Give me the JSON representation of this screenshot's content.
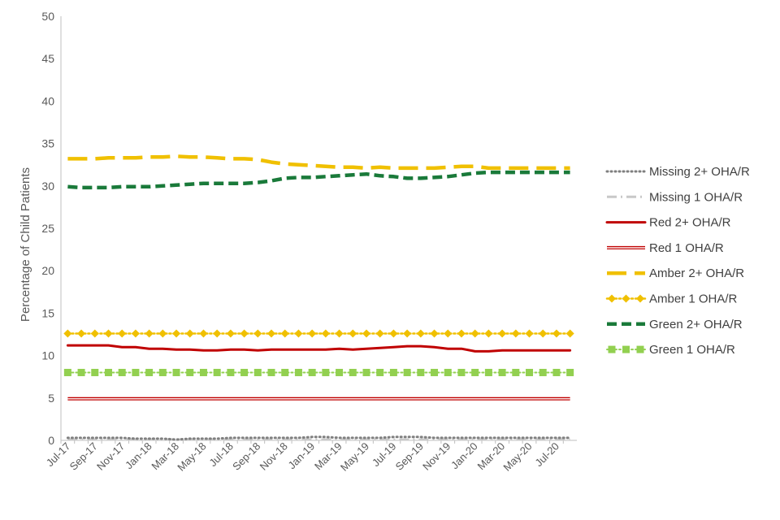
{
  "chart_data": {
    "type": "line",
    "title": "",
    "xlabel": "",
    "ylabel": "Percentage of Child Patients",
    "ylim": [
      0,
      50
    ],
    "yticks": [
      0,
      5,
      10,
      15,
      20,
      25,
      30,
      35,
      40,
      45,
      50
    ],
    "grid": false,
    "legend_position": "right",
    "x": [
      "Jul-17",
      "Aug-17",
      "Sep-17",
      "Oct-17",
      "Nov-17",
      "Dec-17",
      "Jan-18",
      "Feb-18",
      "Mar-18",
      "Apr-18",
      "May-18",
      "Jun-18",
      "Jul-18",
      "Aug-18",
      "Sep-18",
      "Oct-18",
      "Nov-18",
      "Dec-18",
      "Jan-19",
      "Feb-19",
      "Mar-19",
      "Apr-19",
      "May-19",
      "Jun-19",
      "Jul-19",
      "Aug-19",
      "Sep-19",
      "Oct-19",
      "Nov-19",
      "Dec-19",
      "Jan-20",
      "Feb-20",
      "Mar-20",
      "Apr-20",
      "May-20",
      "Jun-20",
      "Jul-20",
      "Aug-20"
    ],
    "tick_labels": [
      "Jul-17",
      "Sep-17",
      "Nov-17",
      "Jan-18",
      "Mar-18",
      "May-18",
      "Jul-18",
      "Sep-18",
      "Nov-18",
      "Jan-19",
      "Mar-19",
      "May-19",
      "Jul-19",
      "Sep-19",
      "Nov-19",
      "Jan-20",
      "Mar-20",
      "May-20",
      "Jul-20"
    ],
    "series": [
      {
        "name": "Missing 2+ OHA/R",
        "color": "#7f7f7f",
        "style": "dotted",
        "values": [
          0.3,
          0.3,
          0.3,
          0.3,
          0.3,
          0.2,
          0.2,
          0.2,
          0.1,
          0.2,
          0.2,
          0.2,
          0.3,
          0.3,
          0.3,
          0.3,
          0.3,
          0.3,
          0.4,
          0.4,
          0.3,
          0.3,
          0.3,
          0.3,
          0.4,
          0.4,
          0.4,
          0.3,
          0.3,
          0.3,
          0.3,
          0.3,
          0.3,
          0.3,
          0.3,
          0.3,
          0.3,
          0.3
        ]
      },
      {
        "name": "Missing 1 OHA/R",
        "color": "#c8c8c8",
        "style": "dashdot",
        "values": [
          0.1,
          0.1,
          0.1,
          0.1,
          0.1,
          0.1,
          0.1,
          0.1,
          0.1,
          0.1,
          0.1,
          0.1,
          0.1,
          0.1,
          0.1,
          0.1,
          0.1,
          0.1,
          0.1,
          0.1,
          0.1,
          0.1,
          0.1,
          0.1,
          0.1,
          0.1,
          0.1,
          0.1,
          0.1,
          0.1,
          0.1,
          0.1,
          0.1,
          0.1,
          0.1,
          0.1,
          0.1,
          0.1
        ]
      },
      {
        "name": "Red 2+ OHA/R",
        "color": "#c00000",
        "style": "solid",
        "values": [
          11.2,
          11.2,
          11.2,
          11.2,
          11.0,
          11.0,
          10.8,
          10.8,
          10.7,
          10.7,
          10.6,
          10.6,
          10.7,
          10.7,
          10.6,
          10.7,
          10.7,
          10.7,
          10.7,
          10.7,
          10.8,
          10.7,
          10.8,
          10.9,
          11.0,
          11.1,
          11.1,
          11.0,
          10.8,
          10.8,
          10.5,
          10.5,
          10.6,
          10.6,
          10.6,
          10.6,
          10.6,
          10.6
        ]
      },
      {
        "name": "Red 1 OHA/R",
        "color": "#c00000",
        "style": "hollow",
        "values": [
          4.9,
          4.9,
          4.9,
          4.9,
          4.9,
          4.9,
          4.9,
          4.9,
          4.9,
          4.9,
          4.9,
          4.9,
          4.9,
          4.9,
          4.9,
          4.9,
          4.9,
          4.9,
          4.9,
          4.9,
          4.9,
          4.9,
          4.9,
          4.9,
          4.9,
          4.9,
          4.9,
          4.9,
          4.9,
          4.9,
          4.9,
          4.9,
          4.9,
          4.9,
          4.9,
          4.9,
          4.9,
          4.9
        ]
      },
      {
        "name": "Amber 2+ OHA/R",
        "color": "#f0c000",
        "style": "longdash",
        "values": [
          33.2,
          33.2,
          33.2,
          33.3,
          33.3,
          33.3,
          33.4,
          33.4,
          33.5,
          33.4,
          33.4,
          33.3,
          33.2,
          33.2,
          33.1,
          32.8,
          32.6,
          32.5,
          32.4,
          32.3,
          32.2,
          32.2,
          32.1,
          32.2,
          32.1,
          32.1,
          32.1,
          32.1,
          32.2,
          32.3,
          32.3,
          32.1,
          32.1,
          32.1,
          32.1,
          32.1,
          32.1,
          32.1
        ]
      },
      {
        "name": "Amber 1 OHA/R",
        "color": "#f0c000",
        "style": "dot-diamond",
        "values": [
          12.6,
          12.6,
          12.6,
          12.6,
          12.6,
          12.6,
          12.6,
          12.6,
          12.6,
          12.6,
          12.6,
          12.6,
          12.6,
          12.6,
          12.6,
          12.6,
          12.6,
          12.6,
          12.6,
          12.6,
          12.6,
          12.6,
          12.6,
          12.6,
          12.6,
          12.6,
          12.6,
          12.6,
          12.6,
          12.6,
          12.6,
          12.6,
          12.6,
          12.6,
          12.6,
          12.6,
          12.6,
          12.6
        ]
      },
      {
        "name": "Green 2+ OHA/R",
        "color": "#1a7a3a",
        "style": "dashed",
        "values": [
          29.9,
          29.8,
          29.8,
          29.8,
          29.9,
          29.9,
          29.9,
          30.0,
          30.1,
          30.2,
          30.3,
          30.3,
          30.3,
          30.3,
          30.4,
          30.6,
          30.9,
          31.0,
          31.0,
          31.1,
          31.2,
          31.3,
          31.4,
          31.2,
          31.1,
          30.9,
          30.9,
          31.0,
          31.1,
          31.3,
          31.5,
          31.6,
          31.6,
          31.6,
          31.6,
          31.6,
          31.6,
          31.6
        ]
      },
      {
        "name": "Green 1 OHA/R",
        "color": "#92d050",
        "style": "dot-square",
        "values": [
          8.0,
          8.0,
          8.0,
          8.0,
          8.0,
          8.0,
          8.0,
          8.0,
          8.0,
          8.0,
          8.0,
          8.0,
          8.0,
          8.0,
          8.0,
          8.0,
          8.0,
          8.0,
          8.0,
          8.0,
          8.0,
          8.0,
          8.0,
          8.0,
          8.0,
          8.0,
          8.0,
          8.0,
          8.0,
          8.0,
          8.0,
          8.0,
          8.0,
          8.0,
          8.0,
          8.0,
          8.0,
          8.0
        ]
      }
    ]
  }
}
